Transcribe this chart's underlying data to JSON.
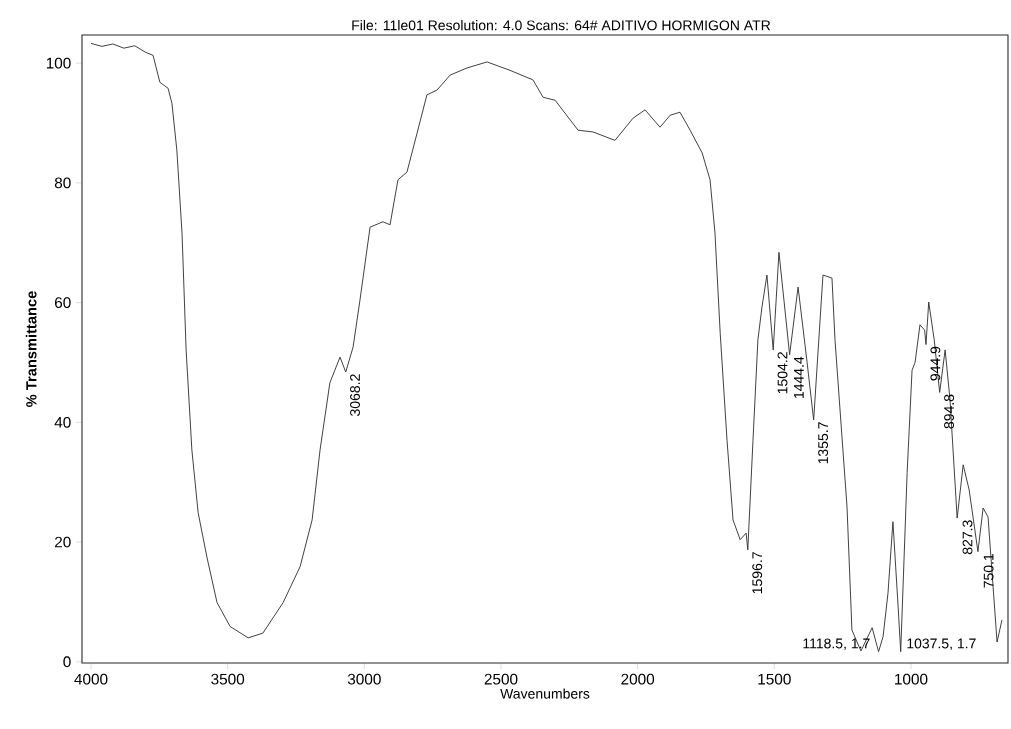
{
  "chart_data": {
    "type": "line",
    "title": "File: 11le01 Resolution: 4.0 Scans: 64# ADITIVO HORMIGON ATR",
    "xlabel": "Wavenumbers",
    "ylabel": "% Transmittance",
    "xlim": [
      4033,
      645
    ],
    "ylim": [
      -0.2,
      104.7
    ],
    "xticks": [
      4000,
      3500,
      3000,
      2500,
      2000,
      1500,
      1000
    ],
    "yticks": [
      0,
      20,
      40,
      60,
      80,
      100
    ],
    "grid": false,
    "marker": "none",
    "line_style": "solid",
    "series": [
      {
        "color": "#333333",
        "x": [
          4000,
          3960,
          3920,
          3880,
          3840,
          3800,
          3773,
          3748,
          3718,
          3704,
          3686,
          3667,
          3652,
          3631,
          3608,
          3576,
          3539,
          3491,
          3425,
          3371,
          3297,
          3235,
          3191,
          3162,
          3126,
          3089,
          3068,
          3041,
          3016,
          2979,
          2932,
          2906,
          2877,
          2844,
          2807,
          2771,
          2734,
          2686,
          2624,
          2551,
          2467,
          2383,
          2346,
          2302,
          2218,
          2163,
          2083,
          2017,
          1973,
          1918,
          1881,
          1845,
          1808,
          1764,
          1735,
          1717,
          1698,
          1673,
          1651,
          1625,
          1603,
          1597,
          1578,
          1560,
          1545,
          1527,
          1504,
          1483,
          1444,
          1413,
          1380,
          1356,
          1322,
          1289,
          1278,
          1234,
          1216,
          1183,
          1142,
          1118.5,
          1102,
          1084,
          1066,
          1047,
          1037.5,
          1014,
          996,
          985,
          967,
          950,
          945,
          935,
          915,
          895,
          875,
          857,
          831,
          809,
          787,
          755,
          736,
          718,
          685,
          667
        ],
        "values": [
          103.3,
          102.8,
          103.2,
          102.5,
          102.9,
          101.8,
          101.3,
          96.8,
          95.8,
          93.3,
          85.5,
          71.6,
          52.1,
          35.4,
          24.9,
          17.5,
          9.9,
          5.9,
          4.0,
          4.8,
          9.9,
          15.9,
          23.7,
          35.4,
          46.6,
          50.9,
          48.4,
          52.6,
          60.4,
          72.6,
          73.5,
          73.0,
          80.5,
          81.8,
          88.3,
          94.7,
          95.5,
          98.0,
          99.2,
          100.2,
          98.8,
          97.2,
          94.3,
          93.8,
          88.8,
          88.5,
          87.1,
          90.8,
          92.2,
          89.3,
          91.3,
          91.8,
          88.8,
          85.0,
          80.5,
          71.6,
          54.9,
          37.0,
          23.7,
          20.4,
          21.5,
          18.7,
          37.0,
          53.8,
          59.3,
          64.6,
          52.1,
          68.4,
          51.3,
          62.6,
          50.0,
          40.4,
          64.6,
          64.1,
          53.8,
          25.9,
          5.3,
          1.8,
          5.7,
          1.7,
          4.2,
          11.5,
          23.4,
          9.2,
          1.7,
          31.6,
          48.7,
          50.0,
          56.3,
          55.4,
          53.0,
          60.1,
          53.8,
          45.0,
          52.1,
          43.7,
          24.0,
          32.9,
          28.7,
          18.4,
          25.7,
          24.2,
          3.3,
          7.0
        ]
      }
    ],
    "annotations": [
      {
        "text": "3068.2",
        "x": 3068.2,
        "y": 48.4
      },
      {
        "text": "1596.7",
        "x": 1596.7,
        "y": 18.7
      },
      {
        "text": "1504.2",
        "x": 1504.2,
        "y": 52.1
      },
      {
        "text": "1444.4",
        "x": 1444.4,
        "y": 51.3
      },
      {
        "text": "1355.7",
        "x": 1355.7,
        "y": 40.4
      },
      {
        "text": "944.9",
        "x": 944.9,
        "y": 53.0
      },
      {
        "text": "894.8",
        "x": 894.8,
        "y": 45.0
      },
      {
        "text": "827.3",
        "x": 827.3,
        "y": 24.0
      },
      {
        "text": "750.1",
        "x": 750.1,
        "y": 18.4
      },
      {
        "text": "1118.5, 1.7",
        "x": 1118.5,
        "y": 1.7
      },
      {
        "text": "1037.5, 1.7",
        "x": 1037.5,
        "y": 1.7
      }
    ]
  }
}
